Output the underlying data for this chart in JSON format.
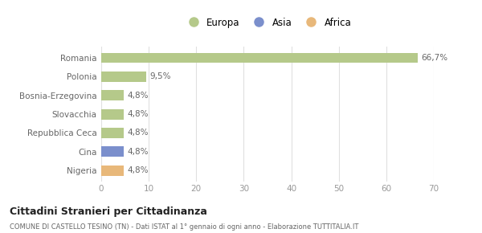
{
  "categories": [
    "Romania",
    "Polonia",
    "Bosnia-Erzegovina",
    "Slovacchia",
    "Repubblica Ceca",
    "Cina",
    "Nigeria"
  ],
  "values": [
    66.7,
    9.5,
    4.8,
    4.8,
    4.8,
    4.8,
    4.8
  ],
  "labels": [
    "66,7%",
    "9,5%",
    "4,8%",
    "4,8%",
    "4,8%",
    "4,8%",
    "4,8%"
  ],
  "colors": [
    "#b5c98a",
    "#b5c98a",
    "#b5c98a",
    "#b5c98a",
    "#b5c98a",
    "#7b8fcc",
    "#e8b87a"
  ],
  "legend": [
    {
      "label": "Europa",
      "color": "#b5c98a"
    },
    {
      "label": "Asia",
      "color": "#7b8fcc"
    },
    {
      "label": "Africa",
      "color": "#e8b87a"
    }
  ],
  "xlim": [
    0,
    70
  ],
  "xticks": [
    0,
    10,
    20,
    30,
    40,
    50,
    60,
    70
  ],
  "title": "Cittadini Stranieri per Cittadinanza",
  "subtitle": "COMUNE DI CASTELLO TESINO (TN) - Dati ISTAT al 1° gennaio di ogni anno - Elaborazione TUTTITALIA.IT",
  "background_color": "#ffffff",
  "grid_color": "#e0e0e0",
  "bar_height": 0.55
}
